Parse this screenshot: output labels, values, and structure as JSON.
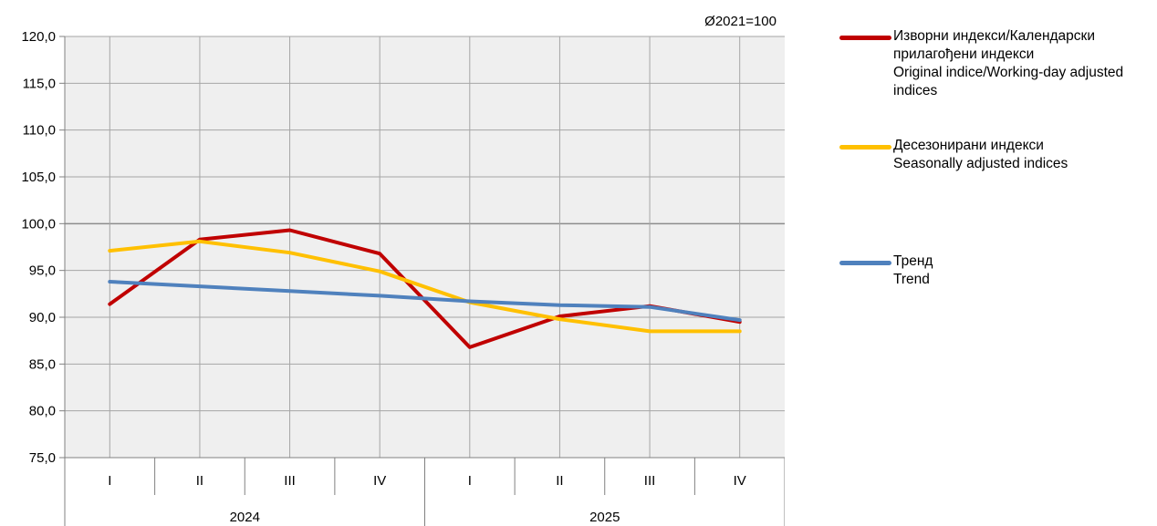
{
  "chart_data": {
    "type": "line",
    "note": "Ø2021=100",
    "ylim": [
      75,
      120
    ],
    "yticks": [
      "120,0",
      "115,0",
      "110,0",
      "105,0",
      "100,0",
      "95,0",
      "90,0",
      "85,0",
      "80,0",
      "75,0"
    ],
    "ytick_values": [
      120,
      115,
      110,
      105,
      100,
      95,
      90,
      85,
      80,
      75
    ],
    "categories": [
      "I",
      "II",
      "III",
      "IV",
      "I",
      "II",
      "III",
      "IV"
    ],
    "groups": [
      {
        "label": "2024",
        "span": 4
      },
      {
        "label": "2025",
        "span": 4
      }
    ],
    "highlight_gridline": 100,
    "series": [
      {
        "name": "Изворни индекси/Календарски прилагођени индекси",
        "name_en": "Original indice/Working-day adjusted indices",
        "color": "#C00000",
        "values": [
          91.4,
          98.3,
          99.3,
          96.8,
          86.8,
          90.1,
          91.2,
          89.5
        ]
      },
      {
        "name": "Десезонирани индекси",
        "name_en": "Seasonally adjusted indices",
        "color": "#FFC000",
        "values": [
          97.1,
          98.1,
          96.9,
          94.9,
          91.6,
          89.8,
          88.5,
          88.5
        ]
      },
      {
        "name": "Тренд",
        "name_en": "Trend",
        "color": "#4F81BD",
        "values": [
          93.8,
          93.3,
          92.8,
          92.3,
          91.7,
          91.3,
          91.1,
          89.7
        ]
      }
    ],
    "grid": true,
    "legend_position": "right"
  },
  "legend": {
    "items": [
      {
        "lines": [
          "Изворни индекси/Календарски",
          "прилагођени индекси",
          "Original indice/Working-day adjusted",
          "indices"
        ],
        "color": "#C00000"
      },
      {
        "lines": [
          "Десезонирани индекси",
          "Seasonally adjusted indices"
        ],
        "color": "#FFC000"
      },
      {
        "lines": [
          "Тренд",
          "Trend"
        ],
        "color": "#4F81BD"
      }
    ]
  }
}
